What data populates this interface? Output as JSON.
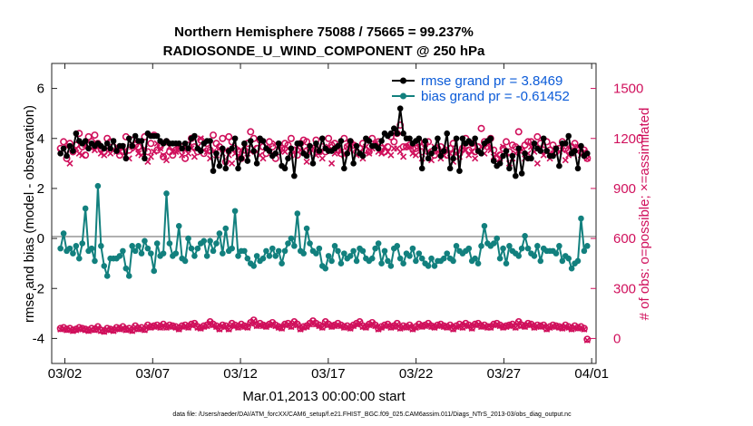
{
  "colors": {
    "rmse": "#000000",
    "bias": "#12807e",
    "obs": "#d0105c",
    "zero": "#b0b0b0",
    "legend_text": "#0b5bd8"
  },
  "chart_data": {
    "type": "line",
    "title": [
      "Northern Hemisphere 75088 / 75665 = 99.237%",
      "RADIOSONDE_U_WIND_COMPONENT @ 250 hPa"
    ],
    "xlabel": "Mar.01,2013 00:00:00 start",
    "ylabel": "rmse and bias (model - observation)",
    "y2label": "# of obs: o=possible; ×=assimilated",
    "x_ticks": [
      "03/02",
      "03/07",
      "03/12",
      "03/17",
      "03/22",
      "03/27",
      "04/01"
    ],
    "x_tick_days": [
      1,
      6,
      11,
      16,
      21,
      26,
      31
    ],
    "xlim_days": [
      0.25,
      31.25
    ],
    "ylim": [
      -5,
      7
    ],
    "y_ticks": [
      -4,
      -2,
      0,
      2,
      4,
      6
    ],
    "y2lim": [
      -150,
      1650
    ],
    "y2_ticks": [
      0,
      300,
      600,
      900,
      1200,
      1500
    ],
    "legend": [
      {
        "series": "rmse",
        "label": "rmse grand pr = 3.8469"
      },
      {
        "series": "bias",
        "label": "bias grand pr = -0.61452"
      }
    ],
    "series": [
      {
        "name": "rmse",
        "axis": "left",
        "values": [
          3.4,
          3.6,
          3.3,
          3.7,
          3.5,
          4.2,
          3.9,
          3.8,
          3.9,
          3.6,
          3.8,
          3.7,
          3.8,
          3.7,
          3.6,
          3.8,
          3.6,
          3.9,
          3.5,
          3.7,
          3.7,
          3.2,
          4.0,
          3.7,
          4.1,
          3.9,
          3.9,
          3.2,
          4.2,
          4.1,
          4.1,
          4.1,
          3.9,
          3.8,
          3.9,
          3.8,
          3.8,
          3.8,
          3.8,
          3.6,
          3.8,
          3.6,
          4.0,
          4.1,
          3.6,
          3.5,
          3.8,
          3.9,
          3.9,
          2.7,
          3.4,
          2.9,
          3.6,
          2.8,
          3.5,
          3.6,
          4.0,
          2.8,
          3.2,
          3.8,
          3.1,
          3.9,
          3.5,
          3.0,
          4.0,
          3.9,
          3.6,
          3.5,
          3.3,
          3.4,
          3.8,
          2.9,
          2.8,
          3.2,
          3.6,
          2.5,
          3.8,
          3.8,
          3.4,
          3.3,
          3.7,
          3.0,
          3.8,
          3.5,
          4.0,
          3.6,
          3.5,
          3.5,
          3.6,
          3.7,
          3.9,
          2.8,
          3.4,
          3.9,
          3.0,
          3.7,
          3.4,
          3.3,
          4.0,
          3.9,
          3.7,
          3.7,
          3.6,
          3.9,
          4.2,
          4.1,
          4.2,
          4.4,
          4.2,
          5.2,
          4.2,
          4.0,
          4.0,
          3.8,
          3.9,
          4.0,
          2.8,
          3.9,
          3.2,
          3.4,
          3.6,
          4.0,
          3.3,
          3.5,
          4.2,
          2.8,
          3.2,
          4.0,
          2.7,
          4.0,
          3.8,
          3.9,
          3.8,
          4.0,
          3.5,
          3.4,
          3.8,
          3.9,
          4.0,
          3.1,
          2.9,
          3.0,
          3.3,
          3.5,
          2.8,
          3.3,
          2.5,
          3.6,
          2.6,
          3.4,
          3.2,
          3.2,
          3.8,
          3.6,
          3.5,
          4.0,
          3.5,
          3.3,
          3.3,
          3.6,
          2.9,
          3.8,
          3.8,
          4.1,
          3.4,
          3.5,
          2.8,
          3.7,
          3.3,
          3.4
        ]
      },
      {
        "name": "bias",
        "axis": "left",
        "values": [
          -0.4,
          0.2,
          -0.5,
          -0.4,
          -0.6,
          -0.3,
          -0.8,
          -0.2,
          1.2,
          -0.5,
          -0.4,
          -0.9,
          2.1,
          -0.3,
          -1.1,
          -1.5,
          -0.8,
          -0.8,
          -0.8,
          -0.7,
          -0.5,
          -1.2,
          -1.5,
          -0.3,
          -0.5,
          -0.3,
          -0.6,
          -0.1,
          -0.4,
          -0.6,
          -1.3,
          -0.2,
          -0.7,
          -0.6,
          1.8,
          -0.2,
          -0.7,
          -0.6,
          0.5,
          -0.8,
          -0.9,
          0.0,
          -0.4,
          -0.7,
          -0.4,
          -0.2,
          -0.1,
          -0.7,
          -0.1,
          -0.5,
          -0.2,
          0.2,
          -0.6,
          0.4,
          -0.5,
          -0.4,
          1.1,
          -0.7,
          -0.5,
          -0.5,
          -0.8,
          -1.0,
          -1.1,
          -0.7,
          -0.9,
          -0.8,
          -0.5,
          -0.7,
          -0.4,
          -0.7,
          -0.5,
          -1.0,
          -0.5,
          -0.2,
          0.0,
          -0.3,
          1.0,
          -0.5,
          -0.6,
          0.4,
          -0.2,
          -0.5,
          -0.6,
          -0.4,
          -1.1,
          -1.2,
          -0.7,
          -0.9,
          -0.3,
          -0.5,
          -1.0,
          -0.6,
          -0.8,
          -0.7,
          -0.5,
          -0.9,
          -0.4,
          -0.5,
          -0.8,
          -0.9,
          -0.8,
          -0.4,
          -0.2,
          -1.0,
          -0.5,
          -0.9,
          -1.1,
          -0.4,
          -0.3,
          -0.8,
          -1.0,
          -0.6,
          -0.7,
          -0.4,
          -0.9,
          -0.6,
          -0.8,
          -1.0,
          -1.1,
          -0.8,
          -1.1,
          -0.9,
          -0.9,
          -0.8,
          -0.6,
          -0.8,
          -0.9,
          -0.3,
          -0.5,
          -0.6,
          -0.5,
          -0.4,
          -0.9,
          -0.8,
          -1.0,
          -0.3,
          0.5,
          -0.2,
          -0.3,
          -0.2,
          0.0,
          -0.8,
          -0.4,
          -1.0,
          -0.3,
          -0.5,
          -0.6,
          -0.7,
          -0.4,
          0.1,
          -0.4,
          -0.6,
          -0.7,
          -0.3,
          -0.9,
          -0.4,
          -0.5,
          -0.5,
          -0.5,
          -0.6,
          -0.3,
          -0.9,
          -0.7,
          -0.8,
          -1.2,
          -1.0,
          -0.9,
          0.8,
          -0.5,
          -0.3
        ]
      },
      {
        "name": "possible_counts",
        "axis": "right",
        "marker": "o",
        "values": [
          1140,
          1180,
          1080,
          1170,
          1120,
          1160,
          1230,
          1150,
          1100,
          1210,
          1180,
          1220,
          1170,
          1140,
          1120,
          1200,
          1180,
          1150,
          1130,
          1100,
          1120,
          1210,
          1130,
          1190,
          1160,
          1150,
          1120,
          1210,
          1120,
          1170,
          1220,
          1130,
          1150,
          1090,
          1180,
          1120,
          1100,
          1130,
          1140,
          1150,
          1080,
          1160,
          1200,
          1150,
          1120,
          1190,
          1110,
          1170,
          1130,
          1220,
          1170,
          1150,
          1200,
          1060,
          1210,
          1180,
          1140,
          1120,
          1080,
          1130,
          1170,
          1240,
          1200,
          1140,
          1190,
          1150,
          1110,
          1180,
          1150,
          1080,
          1120,
          1140,
          1170,
          1160,
          1200,
          1130,
          1100,
          1170,
          1190,
          1180,
          1140,
          1140,
          1190,
          1120,
          1150,
          1120,
          1200,
          1160,
          1170,
          1130,
          1110,
          1200,
          1150,
          1180,
          1160,
          1120,
          1140,
          1170,
          1130,
          1120,
          1200,
          1160,
          1180,
          1140,
          1120,
          1150,
          1210,
          1180,
          1230,
          1280,
          1150,
          1150,
          1160,
          1140,
          1140,
          1180,
          1120,
          1170,
          1180,
          1120,
          1100,
          1140,
          1150,
          1120,
          1100,
          1140,
          1170,
          1120,
          1110,
          1140,
          1200,
          1130,
          1170,
          1120,
          1150,
          1260,
          1180,
          1150,
          1200,
          1130,
          1080,
          1100,
          1140,
          1180,
          1120,
          1160,
          1150,
          1240,
          1130,
          1160,
          1180,
          1180,
          1140,
          1210,
          1170,
          1130,
          1180,
          1130,
          1160,
          1120,
          1140,
          1180,
          1140,
          1130,
          1150,
          1170,
          1140,
          1120,
          1130,
          1080
        ]
      },
      {
        "name": "assimilated_counts",
        "axis": "right",
        "marker": "x",
        "values": [
          1120,
          1130,
          1150,
          1050,
          1130,
          1140,
          1110,
          1100,
          1160,
          1150,
          1140,
          1130,
          1150,
          1110,
          1100,
          1140,
          1110,
          1130,
          1120,
          1120,
          1150,
          1100,
          1080,
          1150,
          1140,
          1110,
          1100,
          1140,
          1060,
          1090,
          1120,
          1170,
          1140,
          1100,
          1070,
          1150,
          1120,
          1120,
          1150,
          1100,
          1130,
          1110,
          1140,
          1090,
          1150,
          1200,
          1130,
          1120,
          1080,
          1120,
          1100,
          1140,
          1110,
          1130,
          1100,
          1050,
          1110,
          1090,
          1130,
          1150,
          1110,
          1120,
          1140,
          1120,
          1100,
          1080,
          1150,
          1140,
          1110,
          1170,
          1160,
          1140,
          1120,
          1140,
          1100,
          1120,
          1150,
          1130,
          1130,
          1060,
          1110,
          1140,
          1100,
          1120,
          1080,
          1140,
          1150,
          1050,
          1110,
          1140,
          1120,
          1100,
          1150,
          1130,
          1160,
          1100,
          1120,
          1080,
          1150,
          1110,
          1140,
          1170,
          1120,
          1110,
          1150,
          1120,
          1100,
          1140,
          1140,
          1120,
          1090,
          1150,
          1150,
          1110,
          1100,
          1150,
          1080,
          1140,
          1120,
          1070,
          1150,
          1120,
          1080,
          1100,
          1140,
          1110,
          1060,
          1110,
          1090,
          1140,
          1130,
          1100,
          1120,
          1080,
          1130,
          1150,
          1110,
          1160,
          1130,
          1090,
          1100,
          1080,
          1150,
          1110,
          1050,
          1080,
          1110,
          1140,
          1130,
          1080,
          1110,
          1150,
          1120,
          1050,
          1140,
          1100,
          1120,
          1080,
          1110,
          1140,
          1120,
          1130,
          1070,
          1100,
          1110,
          1130,
          1150,
          1100,
          1120,
          1080
        ]
      },
      {
        "name": "possible_counts_lower",
        "axis": "right",
        "marker": "o",
        "values": [
          60,
          65,
          55,
          60,
          50,
          55,
          65,
          60,
          55,
          50,
          60,
          55,
          70,
          50,
          45,
          60,
          55,
          50,
          65,
          60,
          70,
          55,
          60,
          50,
          75,
          60,
          65,
          55,
          80,
          70,
          75,
          80,
          70,
          85,
          70,
          80,
          75,
          70,
          60,
          75,
          80,
          70,
          85,
          90,
          70,
          65,
          75,
          80,
          100,
          85,
          75,
          60,
          80,
          75,
          60,
          90,
          80,
          70,
          85,
          75,
          70,
          95,
          110,
          80,
          90,
          80,
          75,
          85,
          95,
          80,
          70,
          65,
          85,
          90,
          75,
          100,
          85,
          60,
          70,
          75,
          90,
          105,
          90,
          80,
          70,
          100,
          85,
          75,
          80,
          90,
          80,
          70,
          75,
          65,
          80,
          90,
          100,
          75,
          70,
          85,
          95,
          80,
          60,
          70,
          80,
          85,
          70,
          75,
          90,
          65,
          75,
          70,
          80,
          60,
          70,
          85,
          75,
          80,
          90,
          75,
          70,
          80,
          85,
          75,
          70,
          80,
          60,
          75,
          85,
          70,
          90,
          80,
          65,
          85,
          90,
          75,
          80,
          70,
          70,
          85,
          90,
          80,
          70,
          75,
          80,
          85,
          70,
          100,
          80,
          75,
          90,
          85,
          70,
          80,
          75,
          80,
          60,
          70,
          80,
          75,
          70,
          65,
          80,
          70,
          60,
          75,
          65,
          70,
          60,
          -5
        ]
      },
      {
        "name": "assimilated_counts_lower",
        "axis": "right",
        "marker": "x",
        "values": [
          55,
          60,
          50,
          55,
          45,
          50,
          60,
          55,
          50,
          45,
          55,
          50,
          65,
          45,
          40,
          55,
          50,
          45,
          60,
          55,
          65,
          50,
          55,
          45,
          70,
          55,
          60,
          50,
          75,
          65,
          70,
          75,
          65,
          80,
          65,
          75,
          70,
          65,
          55,
          70,
          75,
          65,
          80,
          85,
          65,
          60,
          70,
          75,
          95,
          80,
          70,
          55,
          75,
          70,
          55,
          85,
          75,
          65,
          80,
          70,
          65,
          90,
          105,
          75,
          85,
          75,
          70,
          80,
          90,
          75,
          65,
          60,
          80,
          85,
          70,
          95,
          80,
          55,
          65,
          70,
          85,
          100,
          85,
          75,
          65,
          95,
          80,
          70,
          75,
          85,
          75,
          65,
          70,
          60,
          75,
          85,
          95,
          70,
          65,
          80,
          90,
          75,
          55,
          65,
          75,
          80,
          65,
          70,
          85,
          60,
          70,
          65,
          75,
          55,
          65,
          80,
          70,
          75,
          85,
          70,
          65,
          75,
          80,
          70,
          65,
          75,
          55,
          70,
          80,
          65,
          85,
          75,
          60,
          80,
          85,
          70,
          75,
          65,
          65,
          80,
          85,
          75,
          65,
          70,
          75,
          80,
          65,
          95,
          75,
          70,
          85,
          80,
          65,
          75,
          70,
          75,
          55,
          65,
          75,
          70,
          65,
          60,
          75,
          65,
          55,
          70,
          60,
          65,
          55,
          -10
        ]
      }
    ]
  },
  "footer": "data file: /Users/raeder/DAI/ATM_forcXX/CAM6_setup/f.e21.FHIST_BGC.f09_025.CAM6assim.011/Diags_NTrS_2013-03/obs_diag_output.nc"
}
